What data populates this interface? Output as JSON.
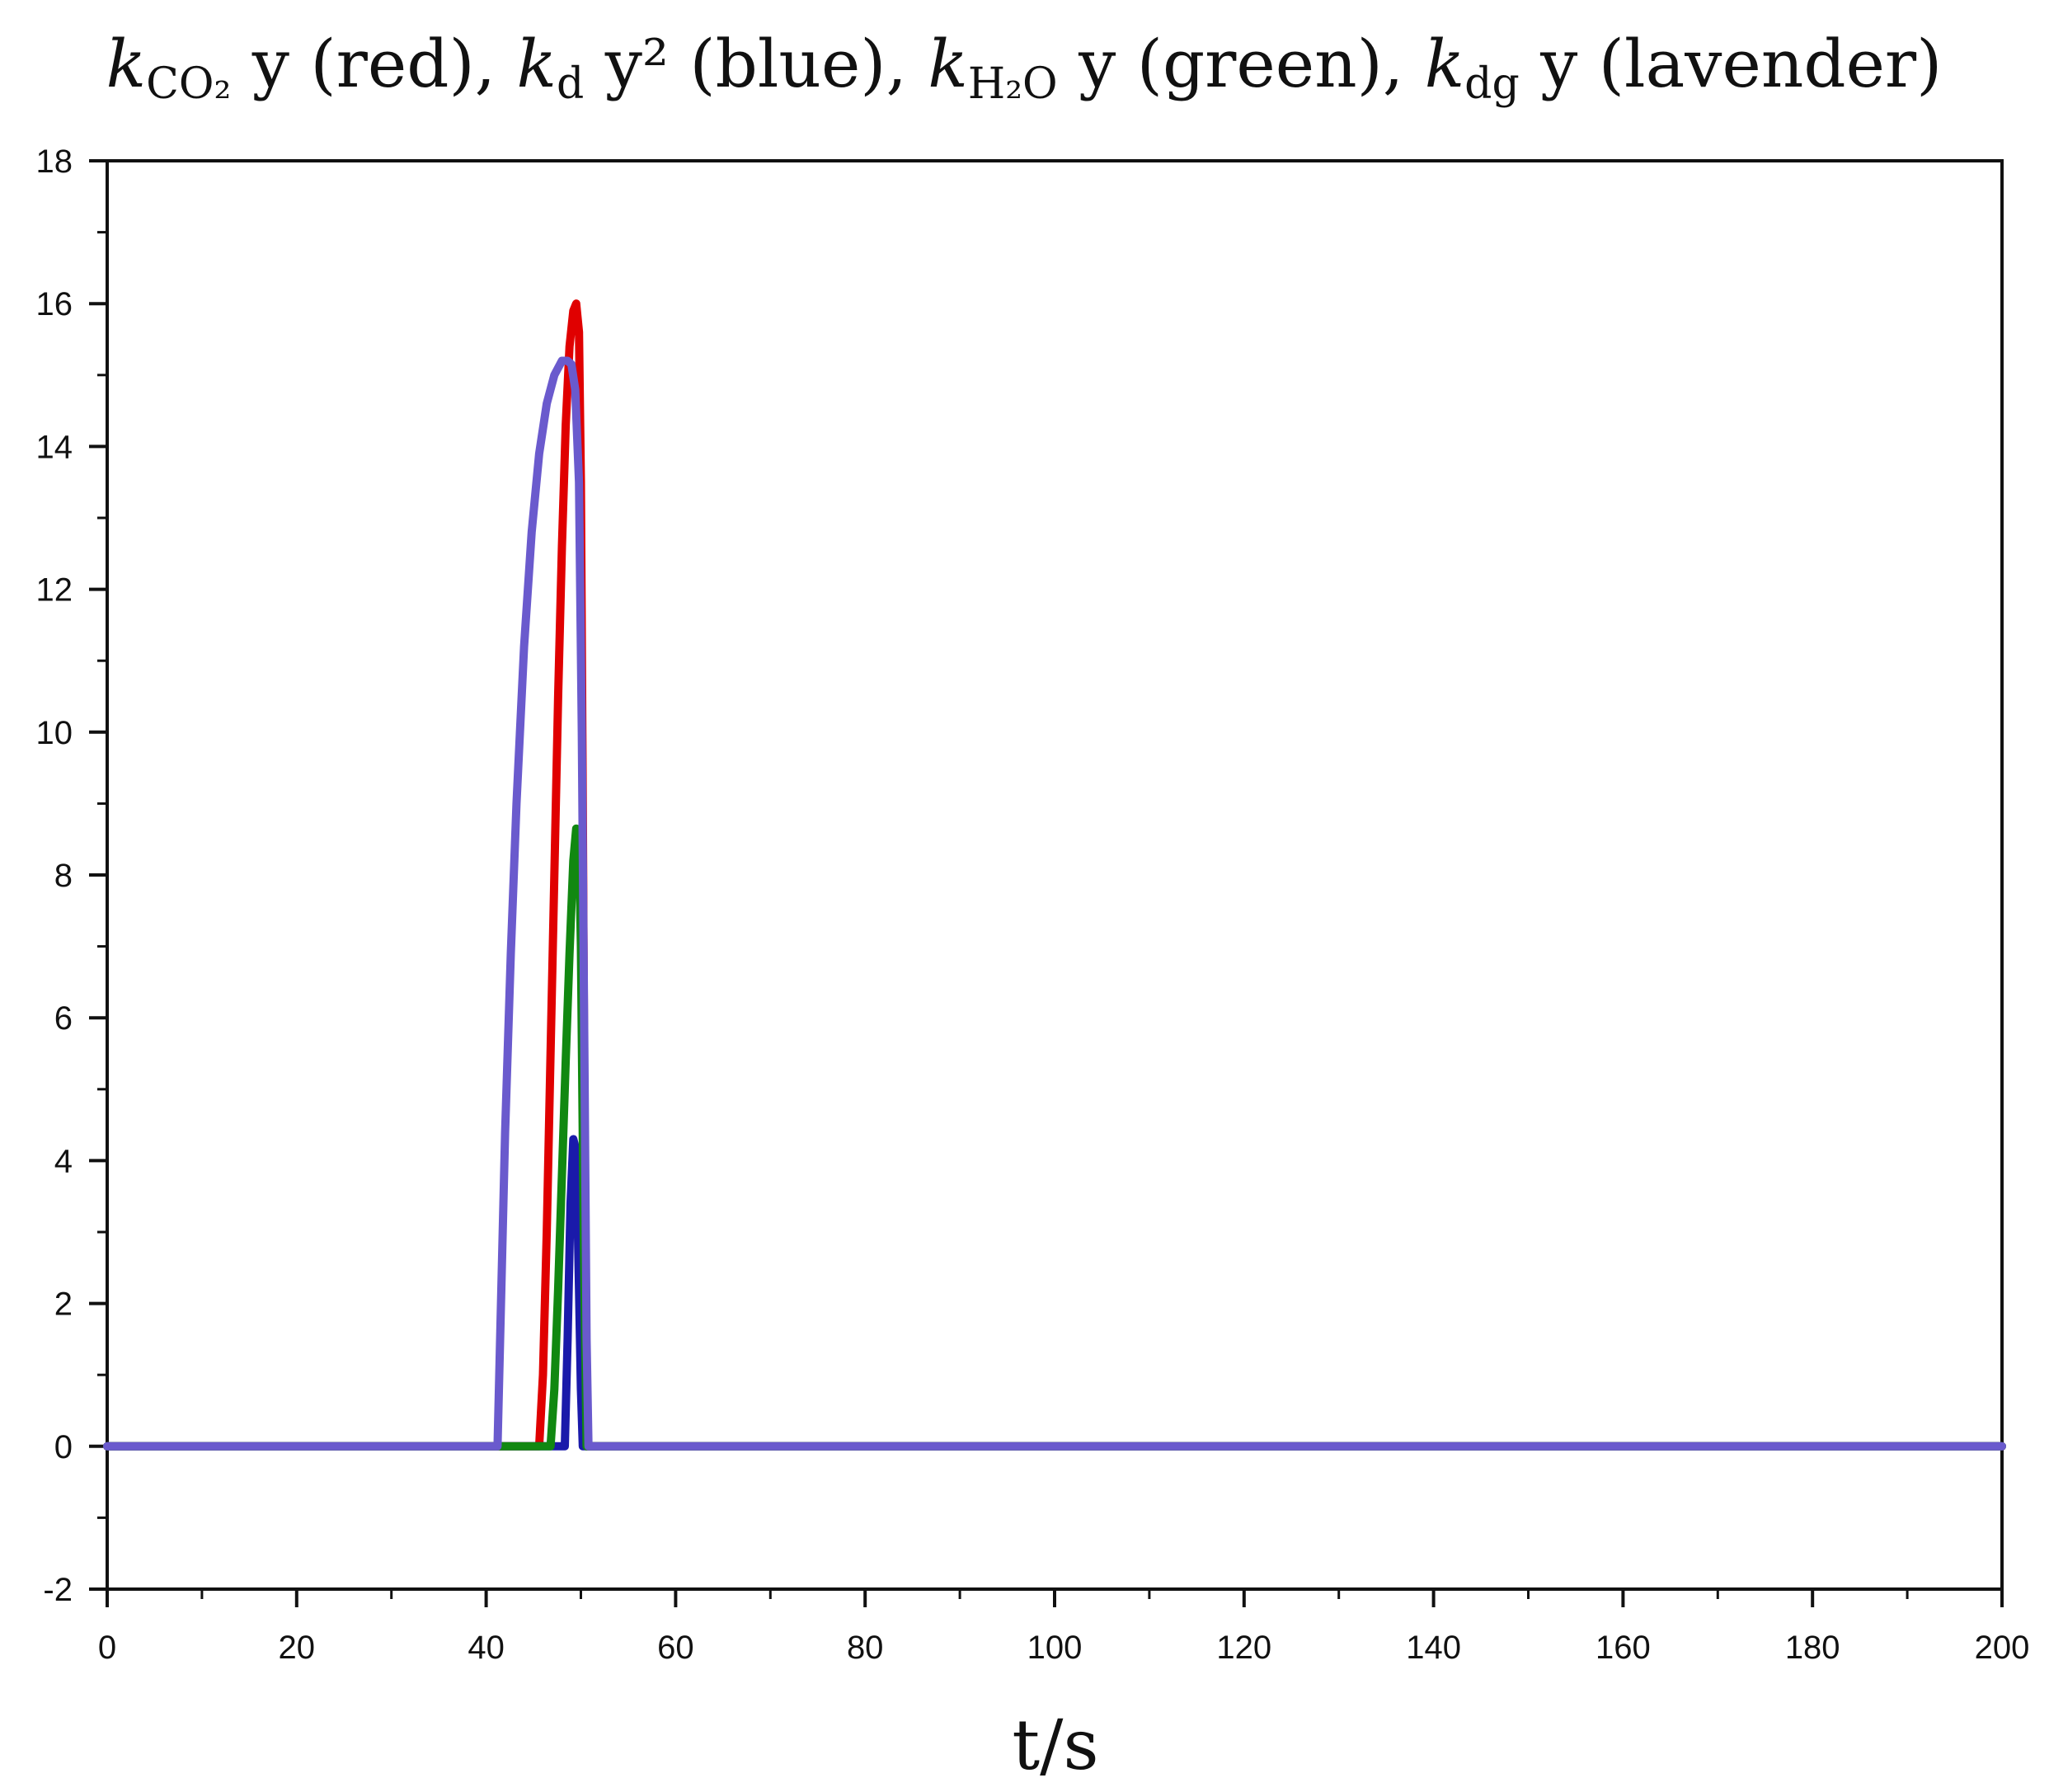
{
  "chart_data": {
    "type": "line",
    "title": {
      "parts": [
        {
          "main": "k",
          "sub": "CO₂",
          "rest": " y (red),  "
        },
        {
          "main": "k",
          "sub": "d",
          "rest": " y² (blue),  "
        },
        {
          "main": "k",
          "sub": "H₂O",
          "rest": " y (green),  "
        },
        {
          "main": "k",
          "sub": "dg",
          "rest": " y (lavender)"
        }
      ]
    },
    "xlabel": "t/s",
    "ylabel": "",
    "xlim": [
      0,
      200
    ],
    "ylim": [
      -2,
      18
    ],
    "xticks": [
      0,
      20,
      40,
      60,
      80,
      100,
      120,
      140,
      160,
      180,
      200
    ],
    "xtick_labels": [
      "0",
      "20",
      "40",
      "60",
      "80",
      "100",
      "120",
      "140",
      "160",
      "180",
      "200"
    ],
    "yticks": [
      -2,
      0,
      2,
      4,
      6,
      8,
      10,
      12,
      14,
      16,
      18
    ],
    "ytick_labels": [
      "-2",
      "0",
      "2",
      "4",
      "6",
      "8",
      "10",
      "12",
      "14",
      "16",
      "18"
    ],
    "grid": false,
    "series": [
      {
        "color": "#e00000",
        "x": [
          0,
          45.6,
          46.0,
          46.4,
          46.8,
          47.2,
          47.6,
          48.0,
          48.4,
          48.8,
          49.2,
          49.5,
          49.8,
          50.0,
          50.2,
          50.4,
          50.6,
          200
        ],
        "y": [
          0,
          0,
          1.0,
          3.0,
          5.5,
          8.0,
          10.5,
          12.6,
          14.3,
          15.4,
          15.9,
          16.0,
          15.6,
          13.5,
          9.0,
          4.0,
          0,
          0
        ]
      },
      {
        "color": "#1a1aaa",
        "x": [
          0,
          48.3,
          48.6,
          48.9,
          49.2,
          49.4,
          49.6,
          49.8,
          50.0,
          50.2,
          200
        ],
        "y": [
          0,
          0,
          1.5,
          3.4,
          4.3,
          4.2,
          3.6,
          2.2,
          0.8,
          0,
          0
        ]
      },
      {
        "color": "#118811",
        "x": [
          0,
          41.5,
          46.8,
          47.2,
          47.6,
          48.0,
          48.4,
          48.8,
          49.2,
          49.5,
          49.8,
          50.0,
          50.3,
          50.6,
          200
        ],
        "y": [
          0,
          0,
          0,
          0.8,
          2.2,
          3.8,
          5.4,
          6.9,
          8.2,
          8.65,
          8.5,
          7.0,
          3.0,
          0,
          0
        ]
      },
      {
        "color": "#6a5acd",
        "x": [
          0,
          41.2,
          41.6,
          42.0,
          42.6,
          43.2,
          44.0,
          44.8,
          45.6,
          46.4,
          47.2,
          48.0,
          48.6,
          49.0,
          49.4,
          49.8,
          50.1,
          50.4,
          50.6,
          50.8,
          200
        ],
        "y": [
          0,
          0,
          2.2,
          4.4,
          6.9,
          9.0,
          11.2,
          12.8,
          13.9,
          14.6,
          15.0,
          15.2,
          15.2,
          15.15,
          14.8,
          13.5,
          10.0,
          5.0,
          1.5,
          0,
          0
        ]
      }
    ]
  }
}
